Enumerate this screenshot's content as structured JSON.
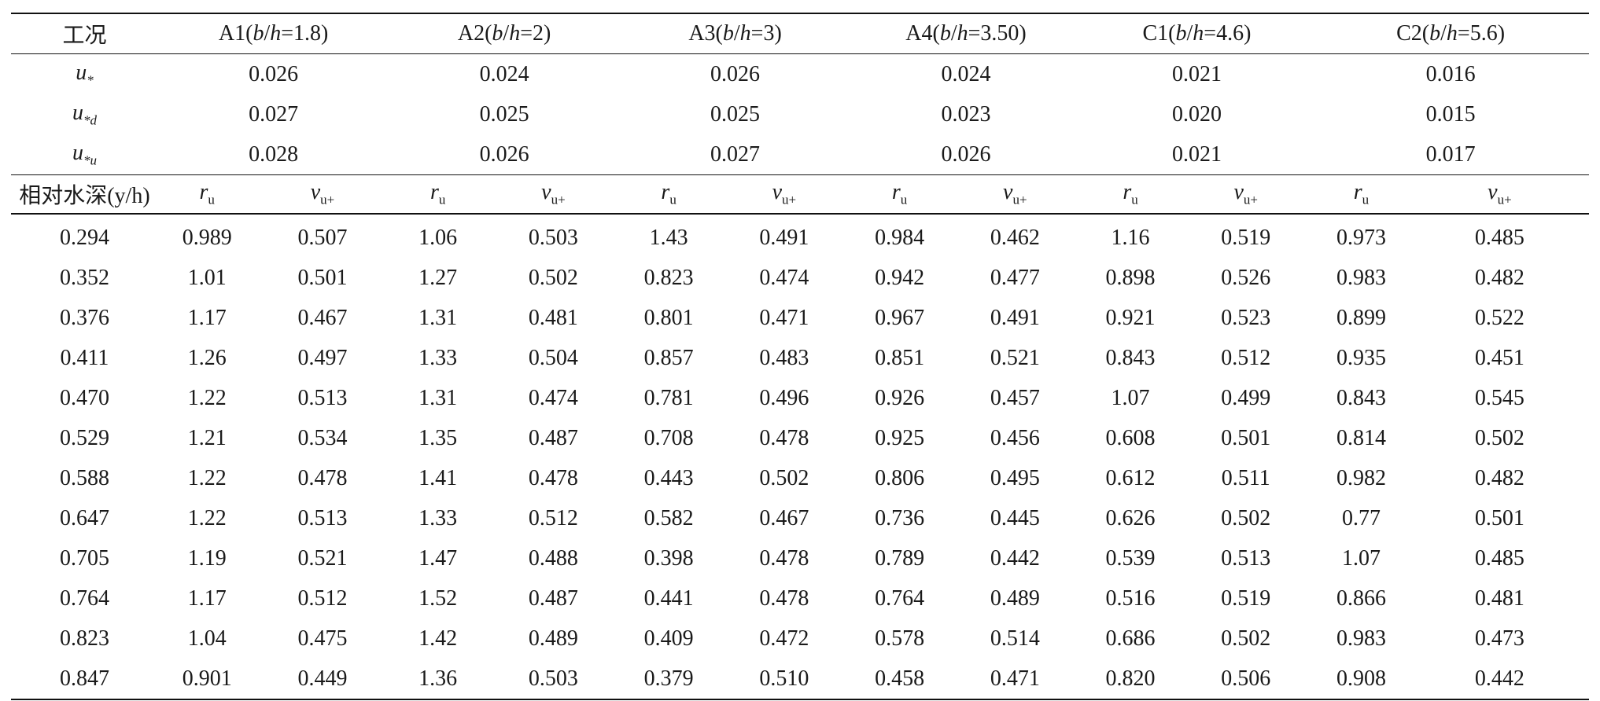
{
  "table": {
    "header_cases": [
      "工况",
      "A1(b/h=1.8)",
      "A2(b/h=2)",
      "A3(b/h=3)",
      "A4(b/h=3.50)",
      "C1(b/h=4.6)",
      "C2(b/h=5.6)"
    ],
    "u_star": {
      "label": "u*",
      "values": [
        "0.026",
        "0.024",
        "0.026",
        "0.024",
        "0.021",
        "0.016"
      ]
    },
    "u_star_d": {
      "label": "u*d",
      "values": [
        "0.027",
        "0.025",
        "0.025",
        "0.023",
        "0.020",
        "0.015"
      ]
    },
    "u_star_u": {
      "label": "u*u",
      "values": [
        "0.028",
        "0.026",
        "0.027",
        "0.026",
        "0.021",
        "0.017"
      ]
    },
    "sub_header": {
      "depth_label": "相对水深(y/h)",
      "r_label": "r",
      "r_sub": "u",
      "v_label": "v",
      "v_sub": "u+"
    },
    "rows": [
      [
        "0.294",
        "0.989",
        "0.507",
        "1.06",
        "0.503",
        "1.43",
        "0.491",
        "0.984",
        "0.462",
        "1.16",
        "0.519",
        "0.973",
        "0.485"
      ],
      [
        "0.352",
        "1.01",
        "0.501",
        "1.27",
        "0.502",
        "0.823",
        "0.474",
        "0.942",
        "0.477",
        "0.898",
        "0.526",
        "0.983",
        "0.482"
      ],
      [
        "0.376",
        "1.17",
        "0.467",
        "1.31",
        "0.481",
        "0.801",
        "0.471",
        "0.967",
        "0.491",
        "0.921",
        "0.523",
        "0.899",
        "0.522"
      ],
      [
        "0.411",
        "1.26",
        "0.497",
        "1.33",
        "0.504",
        "0.857",
        "0.483",
        "0.851",
        "0.521",
        "0.843",
        "0.512",
        "0.935",
        "0.451"
      ],
      [
        "0.470",
        "1.22",
        "0.513",
        "1.31",
        "0.474",
        "0.781",
        "0.496",
        "0.926",
        "0.457",
        "1.07",
        "0.499",
        "0.843",
        "0.545"
      ],
      [
        "0.529",
        "1.21",
        "0.534",
        "1.35",
        "0.487",
        "0.708",
        "0.478",
        "0.925",
        "0.456",
        "0.608",
        "0.501",
        "0.814",
        "0.502"
      ],
      [
        "0.588",
        "1.22",
        "0.478",
        "1.41",
        "0.478",
        "0.443",
        "0.502",
        "0.806",
        "0.495",
        "0.612",
        "0.511",
        "0.982",
        "0.482"
      ],
      [
        "0.647",
        "1.22",
        "0.513",
        "1.33",
        "0.512",
        "0.582",
        "0.467",
        "0.736",
        "0.445",
        "0.626",
        "0.502",
        "0.77",
        "0.501"
      ],
      [
        "0.705",
        "1.19",
        "0.521",
        "1.47",
        "0.488",
        "0.398",
        "0.478",
        "0.789",
        "0.442",
        "0.539",
        "0.513",
        "1.07",
        "0.485"
      ],
      [
        "0.764",
        "1.17",
        "0.512",
        "1.52",
        "0.487",
        "0.441",
        "0.478",
        "0.764",
        "0.489",
        "0.516",
        "0.519",
        "0.866",
        "0.481"
      ],
      [
        "0.823",
        "1.04",
        "0.475",
        "1.42",
        "0.489",
        "0.409",
        "0.472",
        "0.578",
        "0.514",
        "0.686",
        "0.502",
        "0.983",
        "0.473"
      ],
      [
        "0.847",
        "0.901",
        "0.449",
        "1.36",
        "0.503",
        "0.379",
        "0.510",
        "0.458",
        "0.471",
        "0.820",
        "0.506",
        "0.908",
        "0.442"
      ]
    ]
  }
}
